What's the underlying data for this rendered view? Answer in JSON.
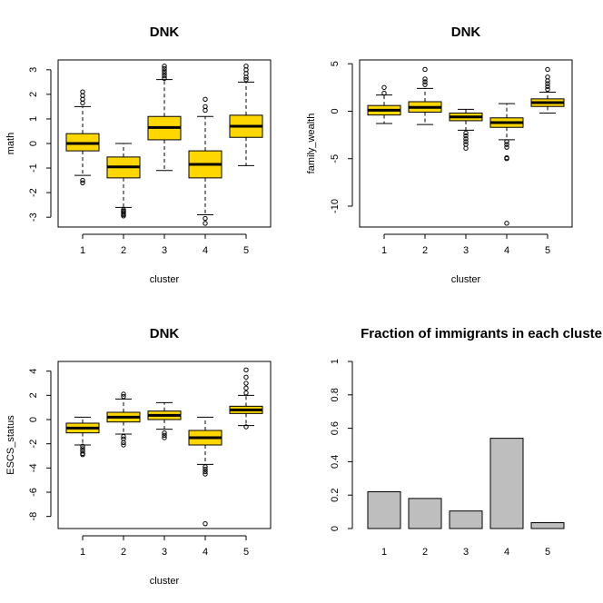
{
  "chart_data": [
    {
      "type": "boxplot",
      "title": "DNK",
      "xlabel": "cluster",
      "ylabel": "math",
      "categories": [
        "1",
        "2",
        "3",
        "4",
        "5"
      ],
      "ylim": [
        -3.4,
        3.4
      ],
      "yticks": [
        -3,
        -2,
        -1,
        0,
        1,
        2,
        3
      ],
      "fill": "#FFD700",
      "boxes": [
        {
          "whisker_low": -1.3,
          "q1": -0.3,
          "median": 0.0,
          "q3": 0.4,
          "whisker_high": 1.5,
          "outliers": [
            1.65,
            1.8,
            1.95,
            2.1,
            -1.5,
            -1.6
          ]
        },
        {
          "whisker_low": -2.6,
          "q1": -1.4,
          "median": -0.95,
          "q3": -0.55,
          "whisker_high": 0.0,
          "outliers": [
            -2.7,
            -2.75,
            -2.8,
            -2.85,
            -2.9,
            -2.95
          ]
        },
        {
          "whisker_low": -1.1,
          "q1": 0.15,
          "median": 0.65,
          "q3": 1.1,
          "whisker_high": 2.6,
          "outliers": [
            2.65,
            2.75,
            2.85,
            2.95,
            3.05,
            3.15
          ]
        },
        {
          "whisker_low": -2.9,
          "q1": -1.4,
          "median": -0.85,
          "q3": -0.3,
          "whisker_high": 1.1,
          "outliers": [
            1.35,
            1.5,
            1.8,
            -3.05,
            -3.25
          ]
        },
        {
          "whisker_low": -0.9,
          "q1": 0.25,
          "median": 0.7,
          "q3": 1.15,
          "whisker_high": 2.5,
          "outliers": [
            2.6,
            2.7,
            2.85,
            3.0,
            3.15
          ]
        }
      ]
    },
    {
      "type": "boxplot",
      "title": "DNK",
      "xlabel": "cluster",
      "ylabel": "family_wealth",
      "categories": [
        "1",
        "2",
        "3",
        "4",
        "5"
      ],
      "ylim": [
        -12.2,
        5.4
      ],
      "yticks": [
        5,
        0,
        -5,
        -10
      ],
      "fill": "#FFD700",
      "boxes": [
        {
          "whisker_low": -1.3,
          "q1": -0.4,
          "median": 0.1,
          "q3": 0.6,
          "whisker_high": 1.7,
          "outliers": [
            1.9,
            2.5
          ]
        },
        {
          "whisker_low": -1.4,
          "q1": -0.1,
          "median": 0.4,
          "q3": 1.0,
          "whisker_high": 2.4,
          "outliers": [
            2.8,
            3.1,
            3.4,
            4.4
          ]
        },
        {
          "whisker_low": -2.0,
          "q1": -1.0,
          "median": -0.6,
          "q3": -0.2,
          "whisker_high": 0.2,
          "outliers": [
            -2.3,
            -2.6,
            -2.9,
            -3.2,
            -3.5,
            -3.9
          ]
        },
        {
          "whisker_low": -3.0,
          "q1": -1.7,
          "median": -1.2,
          "q3": -0.7,
          "whisker_high": 0.8,
          "outliers": [
            -3.2,
            -3.5,
            -3.8,
            -4.9,
            -5.0,
            -11.8
          ]
        },
        {
          "whisker_low": -0.2,
          "q1": 0.5,
          "median": 0.9,
          "q3": 1.3,
          "whisker_high": 2.0,
          "outliers": [
            2.3,
            2.6,
            2.9,
            3.2,
            3.6,
            4.4
          ]
        }
      ]
    },
    {
      "type": "boxplot",
      "title": "DNK",
      "xlabel": "cluster",
      "ylabel": "ESCS_status",
      "categories": [
        "1",
        "2",
        "3",
        "4",
        "5"
      ],
      "ylim": [
        -9.0,
        4.8
      ],
      "yticks": [
        4,
        2,
        0,
        -2,
        -4,
        -6,
        -8
      ],
      "fill": "#FFD700",
      "boxes": [
        {
          "whisker_low": -2.1,
          "q1": -1.1,
          "median": -0.7,
          "q3": -0.3,
          "whisker_high": 0.2,
          "outliers": [
            -2.2,
            -2.4,
            -2.6,
            -2.8,
            -2.9
          ]
        },
        {
          "whisker_low": -1.2,
          "q1": -0.2,
          "median": 0.2,
          "q3": 0.6,
          "whisker_high": 1.7,
          "outliers": [
            1.9,
            2.1,
            -1.4,
            -1.6,
            -1.9,
            -2.1
          ]
        },
        {
          "whisker_low": -0.8,
          "q1": 0.0,
          "median": 0.35,
          "q3": 0.7,
          "whisker_high": 1.4,
          "outliers": [
            -1.1,
            -1.3,
            -1.5
          ]
        },
        {
          "whisker_low": -3.7,
          "q1": -2.1,
          "median": -1.5,
          "q3": -0.9,
          "whisker_high": 0.2,
          "outliers": [
            -3.9,
            -4.1,
            -4.3,
            -4.5,
            -8.6
          ]
        },
        {
          "whisker_low": -0.5,
          "q1": 0.5,
          "median": 0.8,
          "q3": 1.1,
          "whisker_high": 2.0,
          "outliers": [
            2.2,
            2.6,
            3.0,
            3.5,
            4.1,
            -0.6
          ]
        }
      ]
    },
    {
      "type": "bar",
      "title": "Fraction of immigrants in each cluster",
      "xlabel": "",
      "ylabel": "",
      "categories": [
        "1",
        "2",
        "3",
        "4",
        "5"
      ],
      "values": [
        0.22,
        0.18,
        0.105,
        0.54,
        0.035
      ],
      "ylim": [
        0,
        1.0
      ],
      "yticks": [
        0.0,
        0.2,
        0.4,
        0.6,
        0.8,
        1.0
      ],
      "fill": "#BEBEBE"
    }
  ]
}
